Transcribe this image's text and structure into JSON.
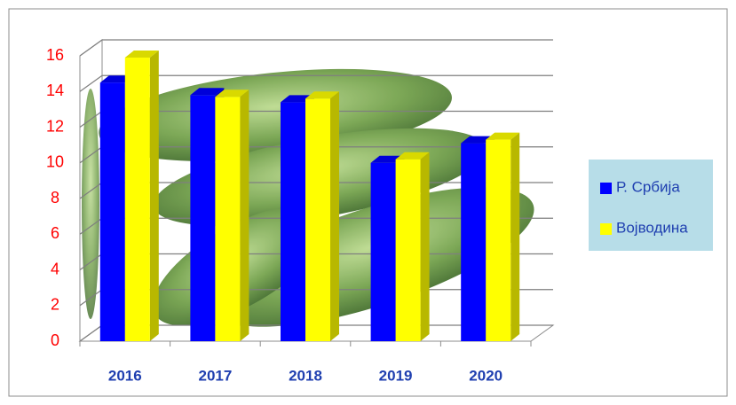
{
  "chart_data": {
    "type": "bar3d",
    "categories": [
      "2016",
      "2017",
      "2018",
      "2019",
      "2020"
    ],
    "series": [
      {
        "name": "Р. Србија",
        "color": "#0000ff",
        "values": [
          14.5,
          13.8,
          13.4,
          10.0,
          11.1
        ]
      },
      {
        "name": "Војводина",
        "color": "#ffff00",
        "values": [
          15.9,
          13.7,
          13.6,
          10.2,
          11.3
        ]
      }
    ],
    "ylim": [
      0,
      16
    ],
    "yticks": [
      0,
      2,
      4,
      6,
      8,
      10,
      12,
      14,
      16
    ],
    "grid": true,
    "legend": "right"
  }
}
